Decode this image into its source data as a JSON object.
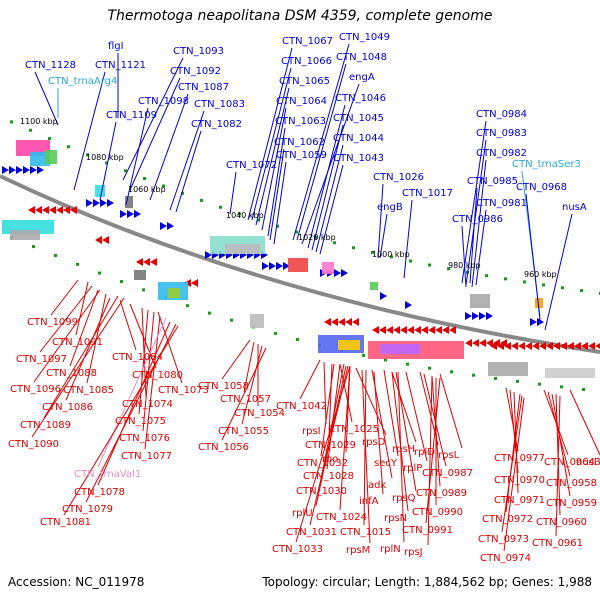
{
  "title": "Thermotoga neapolitana DSM 4359, complete genome",
  "accession": "Accession: NC_011978",
  "summary": "Topology: circular; Length: 1,884,562 bp; Genes: 1,988",
  "colors": {
    "forward": "#0000d9",
    "reverse": "#e00000",
    "trna_forward": "#2aa7d6",
    "trna_reverse": "#e58fc8",
    "backbone": "#888888",
    "gc_dots": "#1a9a1a"
  },
  "scale": {
    "ticks": [
      "1100 kbp",
      "1080 kbp",
      "1060 kbp",
      "1040 kbp",
      "1020 kbp",
      "1000 kbp",
      "980 kbp",
      "960 kbp"
    ]
  },
  "labels": {
    "forward": [
      "flgI",
      "CTN_1128",
      "CTN_1121",
      "CTN_trnaArg4",
      "CTN_1093",
      "CTN_1092",
      "CTN_1098",
      "CTN_1087",
      "CTN_1109",
      "CTN_1083",
      "CTN_1082",
      "CTN_1067",
      "CTN_1066",
      "CTN_1065",
      "CTN_1064",
      "CTN_1063",
      "CTN_1062",
      "CTN_1059",
      "CTN_1072",
      "CTN_1049",
      "CTN_1048",
      "engA",
      "CTN_1046",
      "CTN_1045",
      "CTN_1044",
      "CTN_1043",
      "CTN_1026",
      "CTN_1017",
      "engB",
      "CTN_0984",
      "CTN_0983",
      "CTN_0982",
      "CTN_trnaSer3",
      "CTN_0985",
      "CTN_0968",
      "CTN_0981",
      "CTN_0986",
      "nusA"
    ],
    "reverse": [
      "CTN_1099",
      "CTN_1091",
      "CTN_1097",
      "CTN_1088",
      "CTN_1096",
      "CTN_1085",
      "CTN_1086",
      "CTN_1084",
      "CTN_1080",
      "CTN_1074",
      "CTN_1073",
      "CTN_1075",
      "CTN_1076",
      "CTN_1089",
      "CTN_1090",
      "CTN_1077",
      "CTN_trnaVal1",
      "CTN_1078",
      "CTN_1079",
      "CTN_1081",
      "CTN_1058",
      "CTN_1057",
      "CTN_1054",
      "CTN_1055",
      "CTN_1056",
      "CTN_1042",
      "rpsI",
      "CTN_1025",
      "CTN_1029",
      "rho",
      "rpsD",
      "CTN_1032",
      "secY",
      "rpsH",
      "rplD",
      "rpsL",
      "CTN_1028",
      "adk",
      "rplP",
      "CTN_0987",
      "CTN_1030",
      "infA",
      "rpsQ",
      "CTN_0989",
      "rplU",
      "CTN_1024",
      "rpsN",
      "CTN_0990",
      "CTN_1031",
      "CTN_1015",
      "CTN_0991",
      "CTN_1033",
      "rpsM",
      "rplN",
      "rpsJ",
      "CTN_0977",
      "CTN_0964",
      "nusB",
      "CTN_0970",
      "CTN_0958",
      "CTN_0971",
      "CTN_0959",
      "CTN_0972",
      "CTN_0960",
      "CTN_0973",
      "CTN_0961",
      "CTN_0974"
    ]
  }
}
